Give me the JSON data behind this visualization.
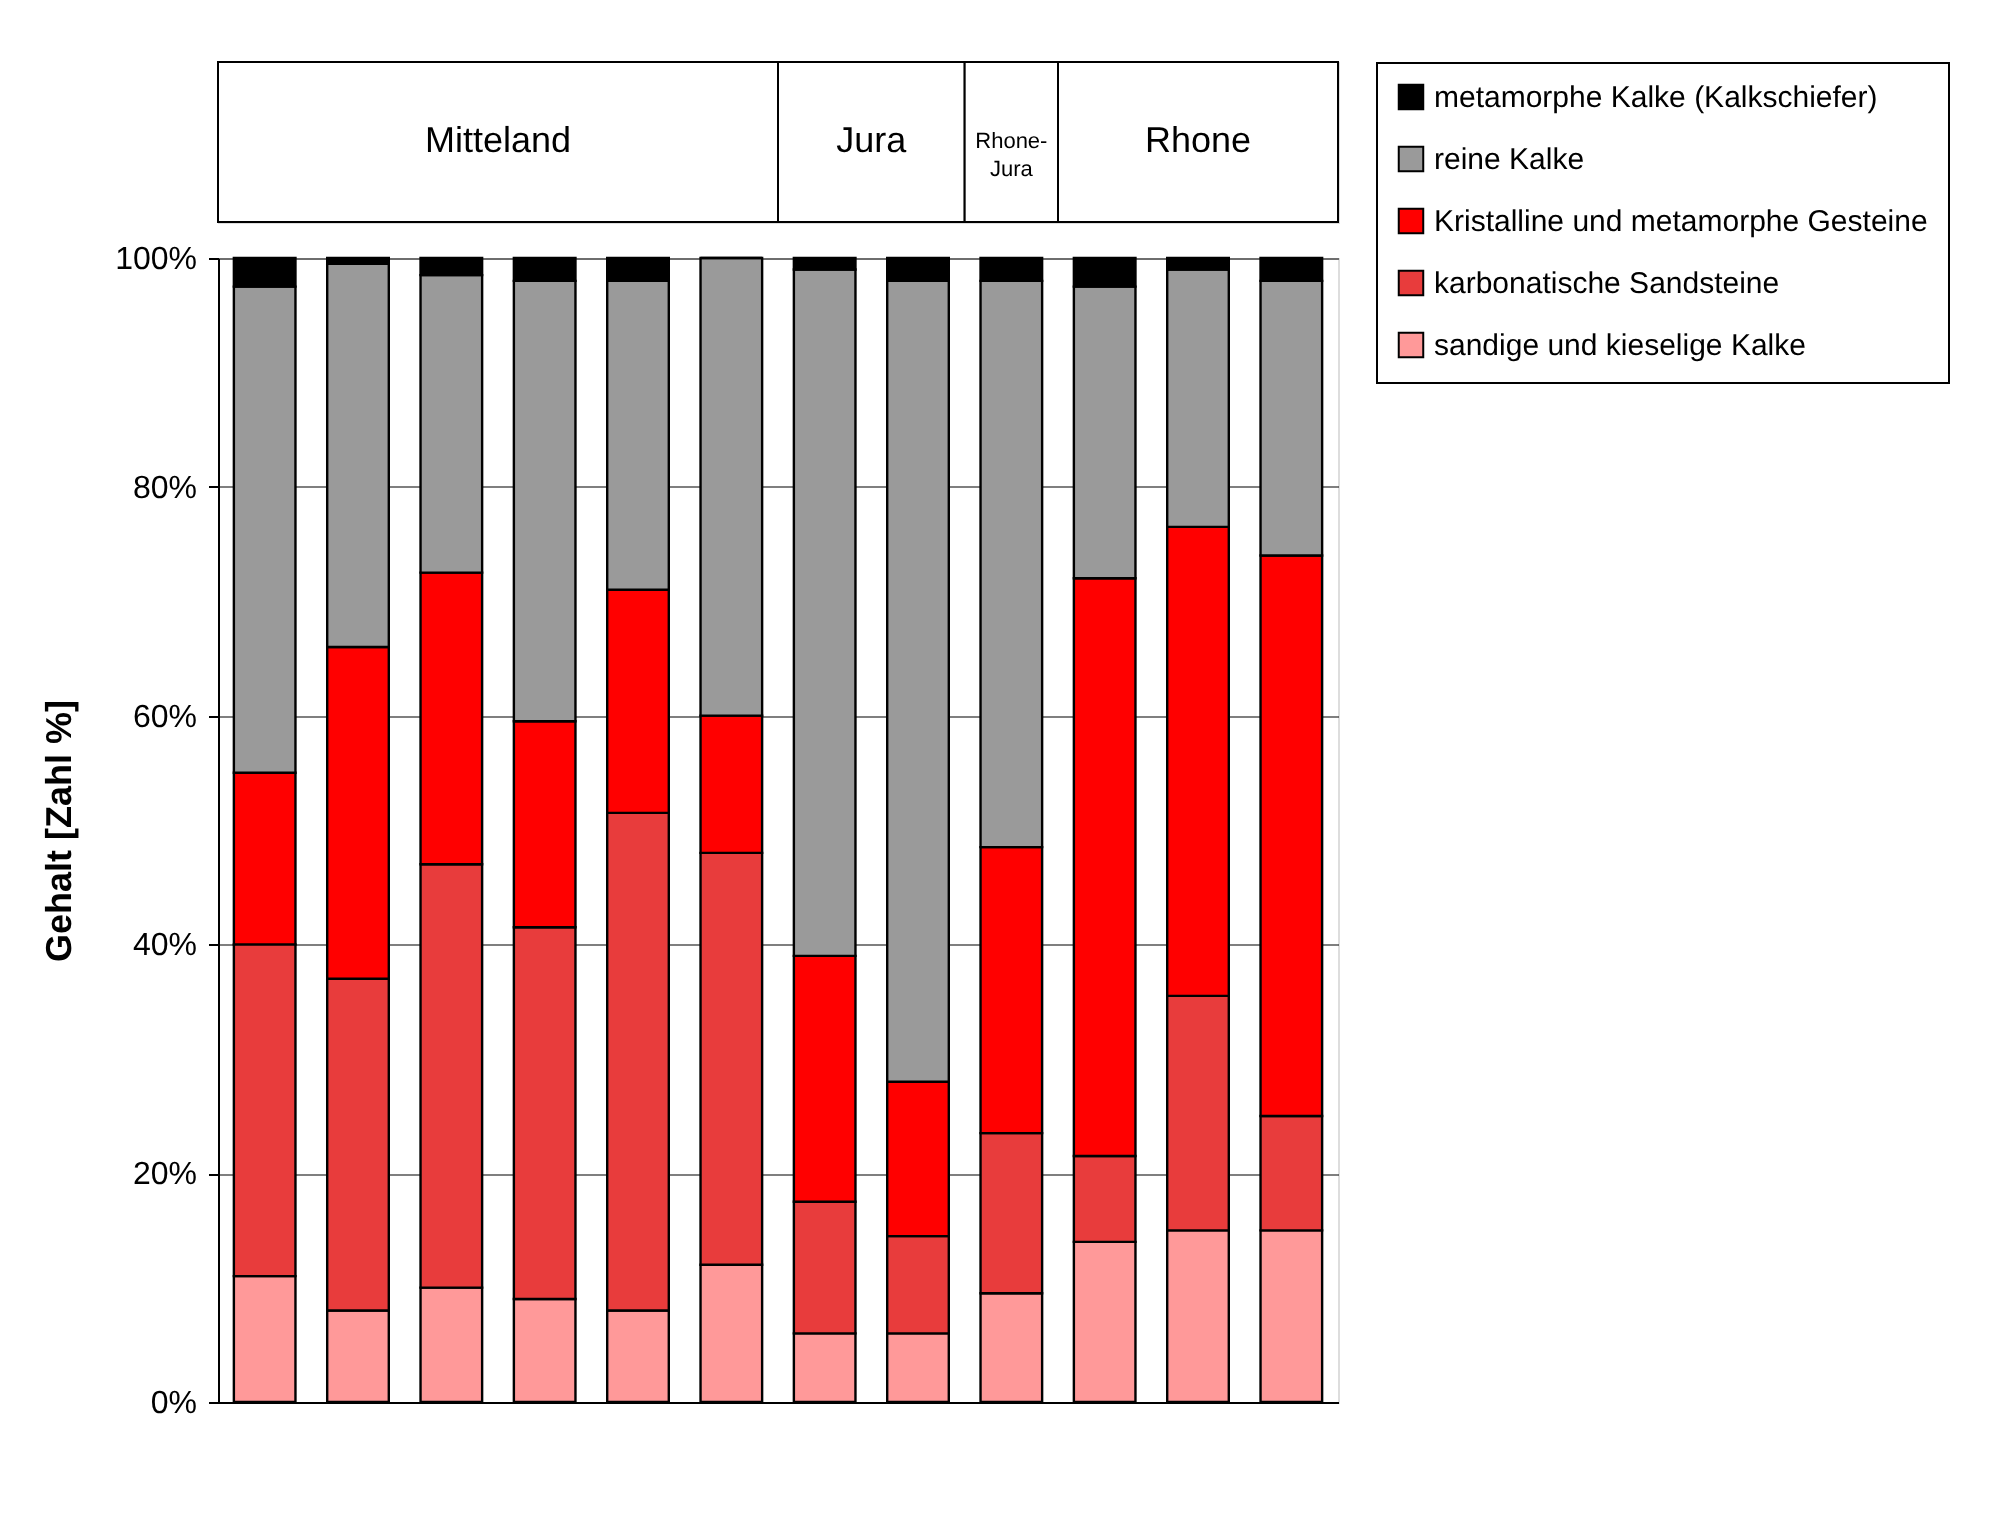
{
  "chart_data": {
    "type": "bar",
    "stacked": true,
    "ylabel": "Gehalt [Zahl %]",
    "categories": [
      null,
      null,
      null,
      null,
      null,
      null,
      null,
      null,
      null,
      null,
      null,
      null
    ],
    "series": [
      {
        "name": "sandige und kieselige Kalke",
        "color": "#ff9999",
        "values": [
          11,
          8,
          10,
          9,
          8,
          12,
          6,
          6,
          9.5,
          14,
          15,
          15
        ]
      },
      {
        "name": "karbonatische Sandsteine",
        "color": "#e83c3c",
        "values": [
          29,
          29,
          37,
          32.5,
          43.5,
          36,
          11.5,
          8.5,
          14,
          7.5,
          20.5,
          10
        ]
      },
      {
        "name": "Kristalline und metamorphe Gesteine",
        "color": "#ff0000",
        "values": [
          15,
          29,
          25.5,
          18,
          19.5,
          12,
          21.5,
          13.5,
          25,
          50.5,
          41,
          49
        ]
      },
      {
        "name": "reine Kalke",
        "color": "#9a9a9a",
        "values": [
          42.5,
          33.5,
          26,
          38.5,
          27,
          40,
          60,
          70,
          49.5,
          25.5,
          22.5,
          24
        ]
      },
      {
        "name": "metamorphe Kalke (Kalkschiefer)",
        "color": "#000000",
        "values": [
          2.5,
          0.5,
          1.5,
          2,
          2,
          0,
          1,
          2,
          2,
          2.5,
          1,
          2
        ]
      }
    ],
    "ylim": [
      0,
      100
    ],
    "yticks": [
      {
        "value": 0,
        "label": "0%"
      },
      {
        "value": 20,
        "label": "20%"
      },
      {
        "value": 40,
        "label": "40%"
      },
      {
        "value": 60,
        "label": "60%"
      },
      {
        "value": 80,
        "label": "80%"
      },
      {
        "value": 100,
        "label": "100%"
      }
    ],
    "grid": "y",
    "legend": "right",
    "tick_labels": "y",
    "annotations": [
      "Mitteland",
      "Jura",
      "Rhone-Jura",
      "Rhone"
    ]
  }
}
